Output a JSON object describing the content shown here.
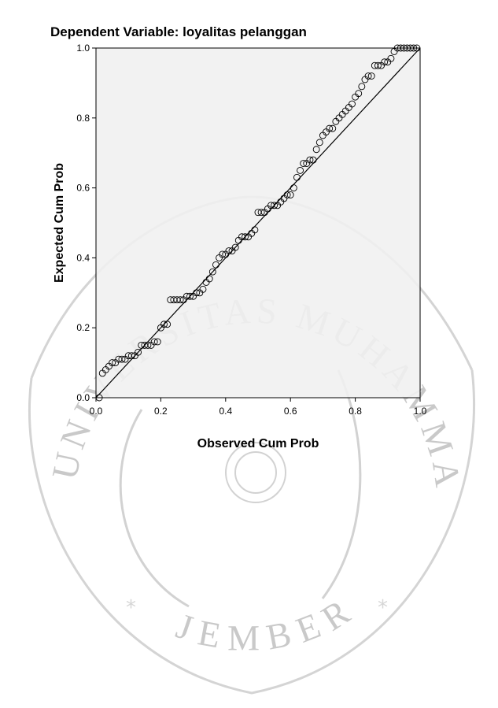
{
  "watermark": {
    "ring_text": "UNIVERSITAS MUHAMMADIYAH",
    "city_text": "JEMBER",
    "color": "#cfcfcf"
  },
  "chart_data": {
    "type": "scatter",
    "title": "Dependent Variable: loyalitas pelanggan",
    "xlabel": "Observed Cum Prob",
    "ylabel": "Expected Cum Prob",
    "xlim": [
      0,
      1
    ],
    "ylim": [
      0,
      1
    ],
    "xticks": [
      "0.0",
      "0.2",
      "0.4",
      "0.6",
      "0.8",
      "1.0"
    ],
    "yticks": [
      "0.0",
      "0.2",
      "0.4",
      "0.6",
      "0.8",
      "1.0"
    ],
    "grid": false,
    "plot_background": "#f0f0f0",
    "reference_line": [
      [
        0,
        0
      ],
      [
        1,
        1
      ]
    ],
    "points": {
      "x": [
        0.01,
        0.02,
        0.03,
        0.04,
        0.05,
        0.06,
        0.07,
        0.08,
        0.09,
        0.1,
        0.11,
        0.12,
        0.13,
        0.14,
        0.15,
        0.16,
        0.17,
        0.18,
        0.19,
        0.2,
        0.21,
        0.22,
        0.23,
        0.24,
        0.25,
        0.26,
        0.27,
        0.28,
        0.29,
        0.3,
        0.31,
        0.32,
        0.33,
        0.34,
        0.35,
        0.36,
        0.37,
        0.38,
        0.39,
        0.4,
        0.41,
        0.42,
        0.43,
        0.44,
        0.45,
        0.46,
        0.47,
        0.48,
        0.49,
        0.5,
        0.51,
        0.52,
        0.53,
        0.54,
        0.55,
        0.56,
        0.57,
        0.58,
        0.59,
        0.6,
        0.61,
        0.62,
        0.63,
        0.64,
        0.65,
        0.66,
        0.67,
        0.68,
        0.69,
        0.7,
        0.71,
        0.72,
        0.73,
        0.74,
        0.75,
        0.76,
        0.77,
        0.78,
        0.79,
        0.8,
        0.81,
        0.82,
        0.83,
        0.84,
        0.85,
        0.86,
        0.87,
        0.88,
        0.89,
        0.9,
        0.91,
        0.92,
        0.93,
        0.94,
        0.95,
        0.96,
        0.97,
        0.98,
        0.99
      ],
      "y": [
        0.0,
        0.07,
        0.08,
        0.09,
        0.1,
        0.1,
        0.11,
        0.11,
        0.11,
        0.12,
        0.12,
        0.12,
        0.13,
        0.15,
        0.15,
        0.15,
        0.15,
        0.16,
        0.16,
        0.2,
        0.21,
        0.21,
        0.28,
        0.28,
        0.28,
        0.28,
        0.28,
        0.29,
        0.29,
        0.29,
        0.3,
        0.3,
        0.31,
        0.33,
        0.34,
        0.36,
        0.38,
        0.4,
        0.41,
        0.41,
        0.42,
        0.42,
        0.43,
        0.45,
        0.46,
        0.46,
        0.46,
        0.47,
        0.48,
        0.53,
        0.53,
        0.53,
        0.54,
        0.55,
        0.55,
        0.55,
        0.56,
        0.57,
        0.58,
        0.58,
        0.6,
        0.63,
        0.65,
        0.67,
        0.67,
        0.68,
        0.68,
        0.71,
        0.73,
        0.75,
        0.76,
        0.77,
        0.77,
        0.79,
        0.8,
        0.81,
        0.82,
        0.83,
        0.84,
        0.86,
        0.87,
        0.89,
        0.91,
        0.92,
        0.92,
        0.95,
        0.95,
        0.95,
        0.96,
        0.96,
        0.97,
        0.99,
        1.0,
        1.0,
        1.0,
        1.0,
        1.0,
        1.0,
        1.0
      ]
    }
  }
}
